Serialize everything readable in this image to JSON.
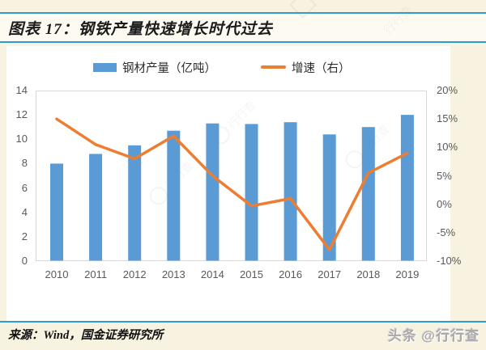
{
  "header": {
    "title": "图表 17：钢铁产量快速增长时代过去"
  },
  "legend": [
    {
      "label": "钢材产量（亿吨）",
      "swatch": "bar",
      "color": "#5b9bd5"
    },
    {
      "label": "增速（右）",
      "swatch": "line",
      "color": "#ed7d31"
    }
  ],
  "chart_data": {
    "type": "bar",
    "subtype": "combo bar+line, dual axis",
    "title": "钢铁产量快速增长时代过去",
    "categories": [
      "2010",
      "2011",
      "2012",
      "2013",
      "2014",
      "2015",
      "2016",
      "2017",
      "2018",
      "2019"
    ],
    "series": [
      {
        "name": "钢材产量（亿吨）",
        "type": "bar",
        "axis": "left",
        "color": "#5b9bd5",
        "values": [
          8.0,
          8.8,
          9.5,
          10.7,
          11.3,
          11.25,
          11.4,
          10.4,
          11.0,
          12.0
        ]
      },
      {
        "name": "增速（右）",
        "type": "line",
        "axis": "right",
        "color": "#ed7d31",
        "values": [
          15.0,
          10.5,
          8.0,
          12.0,
          5.0,
          -0.3,
          1.0,
          -8.0,
          5.5,
          9.0
        ]
      }
    ],
    "left_axis": {
      "min": 0,
      "max": 14,
      "step": 2,
      "ticks_top_to_bottom": [
        "14",
        "12",
        "10",
        "8",
        "6",
        "4",
        "2",
        "0"
      ]
    },
    "right_axis": {
      "min": -10,
      "max": 20,
      "step": 5,
      "unit": "%",
      "ticks_top_to_bottom": [
        "20%",
        "15%",
        "10%",
        "5%",
        "0%",
        "-5%",
        "-10%"
      ]
    },
    "grid": false,
    "legend_position": "top"
  },
  "footer": {
    "source": "来源：Wind，国金证券研究所",
    "brand": "头条 @行行查"
  },
  "watermark": {
    "label": "行行查"
  }
}
